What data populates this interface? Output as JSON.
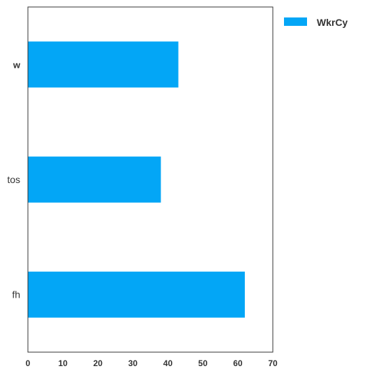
{
  "chart_data": {
    "type": "bar",
    "orientation": "horizontal",
    "categories": [
      "w",
      "tos",
      "fh"
    ],
    "series": [
      {
        "name": "WkrCy",
        "values": [
          43,
          38,
          62
        ],
        "color": "#03a6f6"
      }
    ],
    "xlim": [
      0,
      70
    ],
    "xticks": [
      0,
      10,
      20,
      30,
      40,
      50,
      60,
      70
    ],
    "title": "",
    "xlabel": "",
    "ylabel": "",
    "grid": false,
    "legend": {
      "position": "outside-top-right"
    }
  }
}
